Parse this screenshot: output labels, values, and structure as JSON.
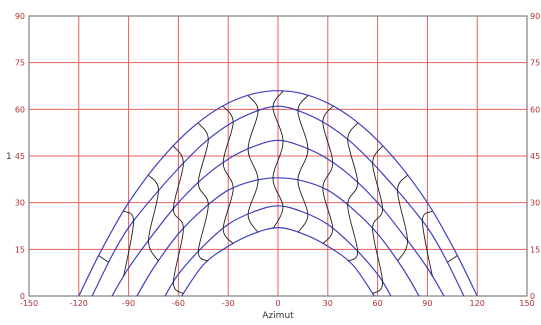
{
  "chart_data": {
    "type": "line",
    "title": "",
    "xlabel": "Azimut",
    "ylabel": "1",
    "xlim": [
      -150,
      150
    ],
    "ylim": [
      0,
      90
    ],
    "x_ticks": [
      -150,
      -120,
      -90,
      -60,
      -30,
      0,
      30,
      60,
      90,
      120,
      150
    ],
    "y_ticks": [
      0,
      15,
      30,
      45,
      60,
      75,
      90
    ],
    "grid": true,
    "colors": {
      "grid": "#e06060",
      "frame": "#808080",
      "day_path": "#4040c0",
      "hour_line": "#202020",
      "tick_text": "#b03030"
    },
    "series": [
      {
        "x": [
          -120,
          -110,
          -100,
          -90,
          -75,
          -60,
          -45,
          -30,
          -15,
          0,
          15,
          30,
          45,
          60,
          75,
          90,
          100,
          110,
          120
        ],
        "y": [
          0,
          11,
          21,
          30,
          41,
          50,
          57,
          62,
          65,
          66,
          65,
          62,
          57,
          50,
          41,
          30,
          21,
          11,
          0
        ]
      },
      {
        "x": [
          -112,
          -100,
          -90,
          -75,
          -60,
          -45,
          -30,
          -15,
          0,
          15,
          30,
          45,
          60,
          75,
          90,
          100,
          112
        ],
        "y": [
          0,
          13,
          22,
          32,
          41,
          49,
          55,
          59,
          61,
          59,
          55,
          49,
          41,
          32,
          22,
          13,
          0
        ]
      },
      {
        "x": [
          -100,
          -90,
          -75,
          -60,
          -45,
          -30,
          -15,
          0,
          15,
          30,
          45,
          60,
          75,
          90,
          100
        ],
        "y": [
          0,
          9,
          20,
          30,
          38,
          44,
          48,
          50,
          48,
          44,
          38,
          30,
          20,
          9,
          0
        ]
      },
      {
        "x": [
          -85,
          -75,
          -60,
          -45,
          -30,
          -15,
          0,
          15,
          30,
          45,
          60,
          75,
          85
        ],
        "y": [
          0,
          9,
          20,
          28,
          34,
          37,
          38,
          37,
          34,
          28,
          20,
          9,
          0
        ]
      },
      {
        "x": [
          -68,
          -60,
          -45,
          -30,
          -15,
          0,
          15,
          30,
          45,
          60,
          68
        ],
        "y": [
          0,
          7,
          16,
          23,
          27,
          29,
          27,
          23,
          16,
          7,
          0
        ]
      },
      {
        "x": [
          -58,
          -45,
          -30,
          -15,
          0,
          15,
          30,
          45,
          58
        ],
        "y": [
          0,
          10,
          16,
          20,
          22,
          20,
          16,
          10,
          0
        ]
      }
    ]
  }
}
